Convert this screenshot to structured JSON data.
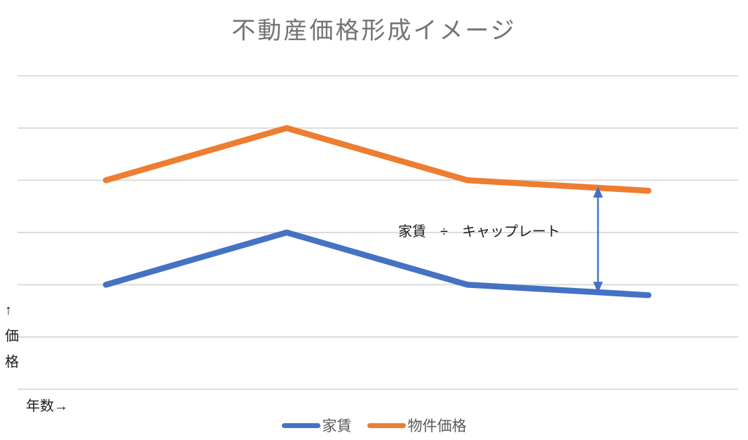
{
  "chart_data": {
    "type": "line",
    "title": "不動産価格形成イメージ",
    "xlabel": "年数→",
    "ylabel": "↑価格",
    "x_tick_labels": [],
    "series": [
      {
        "key": "rent",
        "name": "家賃",
        "color": "#4472C4",
        "values": [
          2.0,
          3.0,
          2.0,
          1.8
        ]
      },
      {
        "key": "property-price",
        "name": "物件価格",
        "color": "#ED7D31",
        "values": [
          4.0,
          5.0,
          4.0,
          3.8
        ]
      }
    ],
    "ylim": [
      0,
      6
    ],
    "gridline_count": 7,
    "gridline_color": "#DBDBDB",
    "legend_position": "bottom",
    "annotation": {
      "text": "家賃　÷　キャップレート",
      "arrow_color": "#4472C4",
      "arrow_x_frac": 0.907
    }
  }
}
